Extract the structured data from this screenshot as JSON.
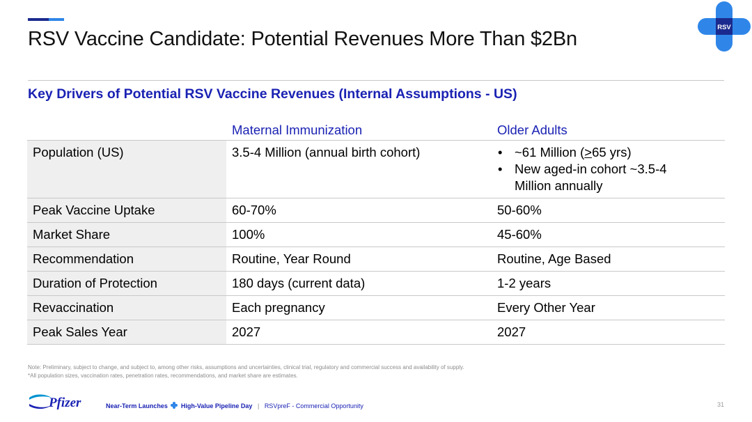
{
  "header": {
    "title": "RSV Vaccine Candidate: Potential Revenues More Than $2Bn",
    "logo_text": "RSV"
  },
  "section": {
    "subtitle": "Key Drivers of Potential RSV Vaccine Revenues (Internal Assumptions - US)"
  },
  "table": {
    "columns": [
      "",
      "Maternal Immunization",
      "Older Adults"
    ],
    "population": {
      "label": "Population (US)",
      "maternal": "3.5-4 Million (annual birth cohort)",
      "older_bullet1_pre": "~61 Million (",
      "older_bullet1_ge": ">",
      "older_bullet1_post": "65 yrs)",
      "older_bullet2_line1": "New aged-in cohort ~3.5-4",
      "older_bullet2_line2": "Million annually"
    },
    "rows": [
      {
        "label": "Peak Vaccine Uptake",
        "maternal": "60-70%",
        "older": "50-60%"
      },
      {
        "label": "Market Share",
        "maternal": "100%",
        "older": "45-60%"
      },
      {
        "label": "Recommendation",
        "maternal": "Routine, Year Round",
        "older": "Routine, Age Based"
      },
      {
        "label": "Duration of Protection",
        "maternal": "180 days (current data)",
        "older": "1-2 years"
      },
      {
        "label": "Revaccination",
        "maternal": "Each pregnancy",
        "older": "Every Other Year"
      },
      {
        "label": "Peak Sales Year",
        "maternal": "2027",
        "older": "2027"
      }
    ]
  },
  "notes": {
    "line1": "Note: Preliminary, subject to change, and subject to, among other risks, assumptions and uncertainties, clinical trial, regulatory and commercial success and availability of supply.",
    "line2": "*All population sizes, vaccination rates, penetration rates, recommendations, and market share are estimates."
  },
  "footer": {
    "brand": "Pfizer",
    "event_part1": "Near-Term Launches",
    "event_part2": "High-Value Pipeline Day",
    "separator": "|",
    "section_label": "RSVpreF - Commercial Opportunity",
    "page_number": "31"
  },
  "colors": {
    "brand_blue": "#1a22b3",
    "accent_dark": "#1b2a8e",
    "accent_light": "#2f86e8",
    "label_bg": "#efefef"
  }
}
